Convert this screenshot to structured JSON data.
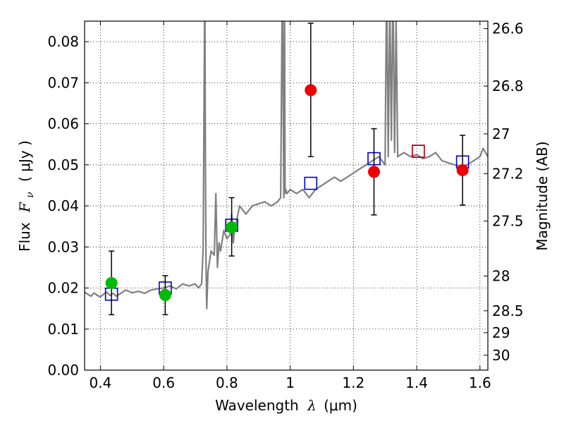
{
  "chart_data": {
    "type": "scatter",
    "xlabel": {
      "prefix": "Wavelength",
      "symbol": "λ",
      "unit": "(μm)"
    },
    "ylabel": {
      "prefix": "Flux",
      "symbol": "F",
      "sub": "ν",
      "unit": "( μJy )"
    },
    "y2label": "Magnitude (AB)",
    "xlim": [
      0.35,
      1.625
    ],
    "ylim": [
      0.0,
      0.085
    ],
    "grid": true,
    "x_ticks": [
      {
        "value": 0.4,
        "label": "0.4"
      },
      {
        "value": 0.6,
        "label": "0.6"
      },
      {
        "value": 0.8,
        "label": "0.8"
      },
      {
        "value": 1.0,
        "label": "1"
      },
      {
        "value": 1.2,
        "label": "1.2"
      },
      {
        "value": 1.4,
        "label": "1.4"
      },
      {
        "value": 1.6,
        "label": "1.6"
      }
    ],
    "y_ticks": [
      {
        "value": 0.0,
        "label": "0.00"
      },
      {
        "value": 0.01,
        "label": "0.01"
      },
      {
        "value": 0.02,
        "label": "0.02"
      },
      {
        "value": 0.03,
        "label": "0.03"
      },
      {
        "value": 0.04,
        "label": "0.04"
      },
      {
        "value": 0.05,
        "label": "0.05"
      },
      {
        "value": 0.06,
        "label": "0.06"
      },
      {
        "value": 0.07,
        "label": "0.07"
      },
      {
        "value": 0.08,
        "label": "0.08"
      }
    ],
    "y2_ticks": [
      {
        "label": "26.6",
        "mag": 26.6
      },
      {
        "label": "26.8",
        "mag": 26.8
      },
      {
        "label": "27",
        "mag": 27.0
      },
      {
        "label": "27.2",
        "mag": 27.2
      },
      {
        "label": "27.5",
        "mag": 27.5
      },
      {
        "label": "28",
        "mag": 28.0
      },
      {
        "label": "28.5",
        "mag": 28.5
      },
      {
        "label": "29",
        "mag": 29.0
      },
      {
        "label": "30",
        "mag": 30.0
      }
    ],
    "series": [
      {
        "kind": "line",
        "color": "#808080",
        "x": [
          0.35,
          0.36,
          0.37,
          0.38,
          0.39,
          0.4,
          0.41,
          0.42,
          0.43,
          0.44,
          0.45,
          0.46,
          0.47,
          0.48,
          0.49,
          0.5,
          0.52,
          0.54,
          0.56,
          0.58,
          0.6,
          0.62,
          0.64,
          0.66,
          0.68,
          0.7,
          0.71,
          0.72,
          0.725,
          0.73,
          0.732,
          0.734,
          0.736,
          0.74,
          0.75,
          0.76,
          0.765,
          0.77,
          0.775,
          0.78,
          0.79,
          0.8,
          0.81,
          0.815,
          0.82,
          0.825,
          0.83,
          0.84,
          0.85,
          0.86,
          0.88,
          0.9,
          0.92,
          0.94,
          0.96,
          0.97,
          0.975,
          0.98,
          0.982,
          0.984,
          0.986,
          0.99,
          1.0,
          1.02,
          1.04,
          1.06,
          1.08,
          1.1,
          1.12,
          1.14,
          1.16,
          1.18,
          1.2,
          1.22,
          1.24,
          1.26,
          1.28,
          1.3,
          1.305,
          1.31,
          1.315,
          1.32,
          1.325,
          1.33,
          1.335,
          1.34,
          1.36,
          1.38,
          1.4,
          1.42,
          1.44,
          1.46,
          1.48,
          1.5,
          1.52,
          1.54,
          1.56,
          1.58,
          1.6,
          1.61,
          1.625
        ],
        "y": [
          0.019,
          0.0185,
          0.018,
          0.0188,
          0.0182,
          0.0178,
          0.0185,
          0.019,
          0.0182,
          0.0187,
          0.018,
          0.0185,
          0.019,
          0.0195,
          0.0192,
          0.0188,
          0.0192,
          0.0187,
          0.0195,
          0.0198,
          0.02,
          0.0205,
          0.0198,
          0.021,
          0.0205,
          0.021,
          0.02,
          0.021,
          0.03,
          0.095,
          0.05,
          0.025,
          0.015,
          0.024,
          0.029,
          0.028,
          0.043,
          0.025,
          0.031,
          0.029,
          0.034,
          0.032,
          0.033,
          0.038,
          0.031,
          0.035,
          0.036,
          0.04,
          0.039,
          0.038,
          0.04,
          0.0405,
          0.041,
          0.04,
          0.041,
          0.042,
          0.095,
          0.042,
          0.095,
          0.043,
          0.044,
          0.043,
          0.044,
          0.043,
          0.044,
          0.042,
          0.044,
          0.045,
          0.046,
          0.047,
          0.046,
          0.047,
          0.048,
          0.049,
          0.05,
          0.051,
          0.052,
          0.05,
          0.095,
          0.052,
          0.09,
          0.056,
          0.095,
          0.053,
          0.085,
          0.052,
          0.053,
          0.052,
          0.0525,
          0.0515,
          0.052,
          0.053,
          0.051,
          0.0505,
          0.05,
          0.0495,
          0.05,
          0.051,
          0.052,
          0.054,
          0.052
        ]
      },
      {
        "kind": "open-square",
        "color": "#0000cc",
        "x": [
          0.435,
          0.605,
          0.815,
          1.065,
          1.265,
          1.405,
          1.545
        ],
        "y": [
          0.0185,
          0.02,
          0.0353,
          0.0455,
          0.0515,
          0.0533,
          0.0507
        ]
      },
      {
        "kind": "open-square",
        "color": "#cc0000",
        "x": [
          1.405
        ],
        "y": [
          0.0533
        ]
      },
      {
        "kind": "errorbar-point",
        "color": "#00bb00",
        "x": [
          0.435,
          0.605,
          0.815
        ],
        "y": [
          0.0212,
          0.0183,
          0.0348
        ],
        "yerr_low": [
          0.0135,
          0.0135,
          0.0278
        ],
        "yerr_high": [
          0.029,
          0.023,
          0.042
        ]
      },
      {
        "kind": "errorbar-point",
        "color": "#ee0000",
        "x": [
          1.065,
          1.265,
          1.545
        ],
        "y": [
          0.0682,
          0.0483,
          0.0487
        ],
        "yerr_low": [
          0.052,
          0.0378,
          0.0402
        ],
        "yerr_high": [
          0.0845,
          0.0588,
          0.0572
        ]
      }
    ]
  }
}
